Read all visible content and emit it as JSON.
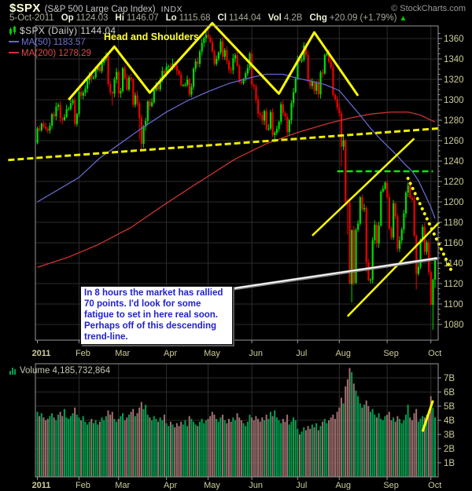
{
  "header": {
    "symbol": "$SPX",
    "description": "(S&P 500 Large Cap Index)",
    "exchange": "INDX",
    "copyright": "© StockCharts.com",
    "date": "5-Oct-2011",
    "quote": {
      "op_label": "Op",
      "op": "1124.03",
      "hi_label": "Hi",
      "hi": "1146.07",
      "lo_label": "Lo",
      "lo": "1115.68",
      "cl_label": "Cl",
      "cl": "1144.04",
      "vol_label": "Vol",
      "vol": "4.2B",
      "chg_label": "Chg",
      "chg": "+20.09 (+1.79%)",
      "direction": "▲"
    }
  },
  "legend": {
    "main": "$SPX (Daily) 1144.04",
    "ma50": "MA(50) 1183.57",
    "ma200": "MA(200) 1278.29"
  },
  "volume_legend": "Volume 4,185,732,864",
  "annotations_text": {
    "head_shoulders": "Head and Shoulders",
    "callout_lines": [
      "In 8 hours the market has rallied",
      "70 points. I'd look for some",
      "fatigue to set in here real soon.",
      "Perhaps off of this descending",
      "trend-line."
    ]
  },
  "colors": {
    "up": "#00DD00",
    "down": "#EE0000",
    "vol_up": "#00A050",
    "vol_down": "#A07070",
    "ma50": "#6666CC",
    "ma200": "#CC3333",
    "grid": "#2D2D2D",
    "frame": "#999999",
    "axis_text": "#CCCC99",
    "annotation_yellow": "#FFFF00",
    "annotation_green": "#00EE00",
    "callout_blue": "#2121CC"
  },
  "chart_data": {
    "type": "candlestick+volume",
    "title": "$SPX Daily with MA(50), MA(200) and volume",
    "ylim": [
      1064,
      1372
    ],
    "volume_ylim_billions": [
      0,
      8
    ],
    "y_ticks": [
      1360,
      1340,
      1320,
      1300,
      1280,
      1260,
      1240,
      1220,
      1200,
      1180,
      1160,
      1140,
      1120,
      1100,
      1080
    ],
    "volume_ticks": [
      7,
      6,
      5,
      4,
      3,
      2,
      1
    ],
    "months": [
      {
        "label": "2011",
        "i": 0
      },
      {
        "label": "Feb",
        "i": 20
      },
      {
        "label": "Mar",
        "i": 39
      },
      {
        "label": "Apr",
        "i": 62
      },
      {
        "label": "May",
        "i": 82
      },
      {
        "label": "Jun",
        "i": 103
      },
      {
        "label": "Jul",
        "i": 125
      },
      {
        "label": "Aug",
        "i": 145
      },
      {
        "label": "Sep",
        "i": 168
      },
      {
        "label": "Oct",
        "i": 189
      }
    ],
    "open_first": 1257.6,
    "closes": [
      1271.9,
      1270.2,
      1276.6,
      1273.9,
      1271.5,
      1269.8,
      1274.5,
      1285.9,
      1283.8,
      1293.2,
      1295.0,
      1281.9,
      1280.3,
      1283.3,
      1290.8,
      1291.2,
      1296.6,
      1299.5,
      1276.3,
      1286.1,
      1307.6,
      1304.0,
      1307.1,
      1310.9,
      1319.1,
      1324.6,
      1320.9,
      1321.9,
      1329.2,
      1332.3,
      1328.0,
      1336.3,
      1340.4,
      1343.0,
      1315.4,
      1307.4,
      1306.1,
      1319.9,
      1327.2,
      1306.3,
      1308.4,
      1330.9,
      1321.2,
      1310.1,
      1321.8,
      1320.0,
      1295.1,
      1304.3,
      1296.4,
      1281.9,
      1256.9,
      1273.7,
      1279.2,
      1298.4,
      1293.8,
      1297.5,
      1309.7,
      1313.8,
      1310.2,
      1319.4,
      1328.3,
      1325.8,
      1332.4,
      1332.9,
      1332.6,
      1335.5,
      1333.5,
      1328.2,
      1324.5,
      1314.2,
      1314.4,
      1314.5,
      1319.7,
      1305.1,
      1312.6,
      1330.4,
      1337.4,
      1335.3,
      1347.2,
      1355.7,
      1360.5,
      1363.6,
      1361.2,
      1356.6,
      1347.3,
      1335.1,
      1340.2,
      1346.3,
      1357.2,
      1342.1,
      1348.7,
      1337.8,
      1329.5,
      1329.0,
      1340.7,
      1343.6,
      1333.3,
      1317.4,
      1316.3,
      1320.5,
      1325.7,
      1331.1,
      1345.2,
      1314.6,
      1312.9,
      1300.2,
      1286.2,
      1284.9,
      1279.6,
      1289.0,
      1271.0,
      1271.8,
      1287.9,
      1265.4,
      1267.6,
      1271.5,
      1278.4,
      1295.5,
      1287.1,
      1283.5,
      1268.5,
      1280.1,
      1296.7,
      1307.4,
      1320.6,
      1339.7,
      1337.9,
      1339.2,
      1353.2,
      1343.8,
      1319.5,
      1313.6,
      1317.7,
      1308.9,
      1316.1,
      1305.4,
      1326.7,
      1325.8,
      1343.8,
      1345.0,
      1337.4,
      1332.0,
      1304.9,
      1300.7,
      1292.3,
      1286.9,
      1254.1,
      1260.3,
      1200.1,
      1199.4,
      1119.5,
      1172.5,
      1120.8,
      1172.6,
      1178.8,
      1204.5,
      1192.8,
      1193.9,
      1140.7,
      1123.5,
      1123.8,
      1162.4,
      1177.6,
      1159.3,
      1176.8,
      1210.1,
      1212.9,
      1218.9,
      1204.4,
      1174.0,
      1165.2,
      1198.6,
      1185.9,
      1154.2,
      1162.3,
      1172.9,
      1188.7,
      1209.1,
      1216.0,
      1204.1,
      1202.1,
      1166.8,
      1129.6,
      1136.4,
      1163.0,
      1175.4,
      1151.1,
      1160.4,
      1131.4,
      1099.2,
      1124.0,
      1144.0
    ],
    "volumes_billions": [
      4.6,
      4.3,
      4.5,
      4.2,
      4.0,
      4.1,
      4.3,
      4.5,
      4.2,
      4.0,
      4.4,
      4.6,
      4.3,
      4.8,
      4.2,
      4.1,
      4.3,
      4.5,
      4.9,
      4.4,
      4.2,
      4.0,
      4.3,
      3.9,
      3.7,
      3.9,
      4.1,
      3.8,
      4.0,
      3.7,
      3.9,
      4.2,
      4.0,
      4.3,
      4.7,
      4.4,
      4.6,
      4.1,
      3.9,
      4.1,
      4.3,
      4.5,
      4.0,
      4.2,
      4.4,
      4.6,
      4.8,
      4.3,
      4.5,
      4.9,
      5.3,
      4.8,
      5.1,
      4.4,
      4.2,
      4.0,
      4.3,
      4.1,
      3.9,
      4.2,
      4.0,
      4.4,
      3.8,
      3.6,
      3.9,
      3.7,
      3.5,
      3.8,
      3.6,
      3.9,
      3.7,
      4.0,
      3.6,
      4.3,
      4.1,
      3.9,
      3.7,
      3.6,
      3.9,
      4.1,
      3.8,
      4.0,
      4.1,
      4.3,
      4.6,
      4.4,
      4.1,
      3.9,
      4.2,
      4.4,
      4.0,
      3.8,
      4.1,
      3.9,
      4.2,
      4.0,
      4.5,
      4.2,
      4.0,
      3.8,
      3.6,
      3.9,
      4.4,
      4.2,
      4.0,
      4.3,
      4.1,
      3.9,
      4.2,
      4.0,
      4.4,
      4.1,
      4.6,
      4.3,
      4.7,
      4.2,
      4.0,
      3.8,
      4.1,
      3.9,
      4.4,
      3.7,
      3.9,
      4.2,
      4.0,
      3.4,
      3.0,
      3.2,
      3.5,
      3.3,
      3.6,
      3.4,
      3.7,
      3.5,
      3.8,
      3.3,
      3.6,
      3.9,
      4.1,
      3.8,
      4.0,
      4.2,
      4.4,
      4.1,
      4.6,
      4.9,
      5.6,
      5.2,
      6.4,
      6.9,
      7.7,
      7.4,
      6.6,
      6.1,
      5.7,
      5.2,
      4.9,
      5.1,
      5.4,
      5.0,
      4.6,
      4.8,
      4.4,
      4.2,
      4.5,
      4.1,
      4.0,
      4.3,
      4.4,
      4.6,
      4.0,
      4.2,
      3.9,
      4.3,
      4.1,
      3.8,
      4.0,
      4.4,
      5.1,
      4.2,
      4.0,
      4.5,
      4.8,
      3.9,
      4.1,
      4.3,
      4.2,
      4.4,
      4.5,
      5.7,
      4.9,
      4.2
    ],
    "wick_overrides": {
      "36": [
        null,
        1294.3
      ],
      "49": [
        null,
        1261.1
      ],
      "50": [
        null,
        1249.0
      ],
      "82": [
        1370.6,
        null
      ],
      "114": [
        null,
        1258.1
      ],
      "128": [
        1356.5,
        null
      ],
      "146": [
        null,
        1234.6
      ],
      "149": [
        null,
        1168.1
      ],
      "150": [
        null,
        1119.3
      ],
      "151": [
        1172.9,
        1101.5
      ],
      "152": [
        null,
        1118.0
      ],
      "158": [
        null,
        1131.0
      ],
      "159": [
        null,
        1122.1
      ],
      "182": [
        null,
        1114.2
      ],
      "189": [
        null,
        1098.9
      ],
      "190": [
        1125.1,
        1074.8
      ],
      "191": [
        1146.1,
        1115.7
      ]
    },
    "ma50_anchors": [
      [
        0,
        1200
      ],
      [
        10,
        1212
      ],
      [
        20,
        1224
      ],
      [
        30,
        1243
      ],
      [
        39,
        1256
      ],
      [
        50,
        1272
      ],
      [
        62,
        1288
      ],
      [
        72,
        1299
      ],
      [
        82,
        1308
      ],
      [
        92,
        1316
      ],
      [
        103,
        1322
      ],
      [
        110,
        1325
      ],
      [
        118,
        1325
      ],
      [
        125,
        1321
      ],
      [
        132,
        1318
      ],
      [
        138,
        1315
      ],
      [
        145,
        1309
      ],
      [
        150,
        1297
      ],
      [
        155,
        1285
      ],
      [
        160,
        1272
      ],
      [
        165,
        1261
      ],
      [
        168,
        1255
      ],
      [
        172,
        1247
      ],
      [
        176,
        1238
      ],
      [
        180,
        1230
      ],
      [
        183,
        1221
      ],
      [
        186,
        1208
      ],
      [
        189,
        1195
      ],
      [
        191,
        1183.6
      ]
    ],
    "ma200_anchors": [
      [
        0,
        1136
      ],
      [
        15,
        1146
      ],
      [
        29,
        1158
      ],
      [
        45,
        1175
      ],
      [
        60,
        1196
      ],
      [
        75,
        1216
      ],
      [
        95,
        1242
      ],
      [
        110,
        1257
      ],
      [
        125,
        1268
      ],
      [
        140,
        1277
      ],
      [
        150,
        1282
      ],
      [
        160,
        1286
      ],
      [
        170,
        1288
      ],
      [
        178,
        1288
      ],
      [
        184,
        1285
      ],
      [
        188,
        1281
      ],
      [
        191,
        1278.3
      ]
    ],
    "overlays": [
      {
        "name": "head-and-shoulders-outline",
        "style": "solid",
        "color": "#FFFF00",
        "width": 3,
        "points": [
          [
            15,
            1300
          ],
          [
            37,
            1352
          ],
          [
            54,
            1307
          ],
          [
            84,
            1375
          ],
          [
            116,
            1306
          ],
          [
            133,
            1366
          ],
          [
            154,
            1304
          ]
        ]
      },
      {
        "name": "long-term-support-dashed",
        "style": "dashed",
        "color": "#EDED00",
        "width": 3,
        "points": [
          [
            -14,
            1241
          ],
          [
            193,
            1272
          ]
        ]
      },
      {
        "name": "resistance-1230-dashed",
        "style": "dashed",
        "color": "#00EE00",
        "width": 2.5,
        "points": [
          [
            144,
            1230
          ],
          [
            190,
            1230
          ]
        ]
      },
      {
        "name": "rising-trendline-upper",
        "style": "solid",
        "color": "#FFFF00",
        "width": 2.5,
        "points": [
          [
            132,
            1167
          ],
          [
            181,
            1262
          ]
        ]
      },
      {
        "name": "rising-trendline-lower",
        "style": "solid",
        "color": "#FFFF00",
        "width": 2.5,
        "points": [
          [
            149,
            1088
          ],
          [
            193,
            1180
          ]
        ]
      },
      {
        "name": "descending-dotted-trendline",
        "style": "dotted",
        "color": "#FFFF00",
        "width": 4,
        "points": [
          [
            178,
            1223
          ],
          [
            199,
            1132
          ]
        ]
      }
    ],
    "volume_overlays": [
      {
        "name": "volume-trendline",
        "style": "solid",
        "color": "#FFFF00",
        "width": 3,
        "points": [
          [
            185,
            3.2
          ],
          [
            190,
            5.4
          ]
        ]
      }
    ],
    "callout_line": {
      "x1": 294,
      "y1": 368,
      "x2": 556,
      "y2": 329
    }
  }
}
